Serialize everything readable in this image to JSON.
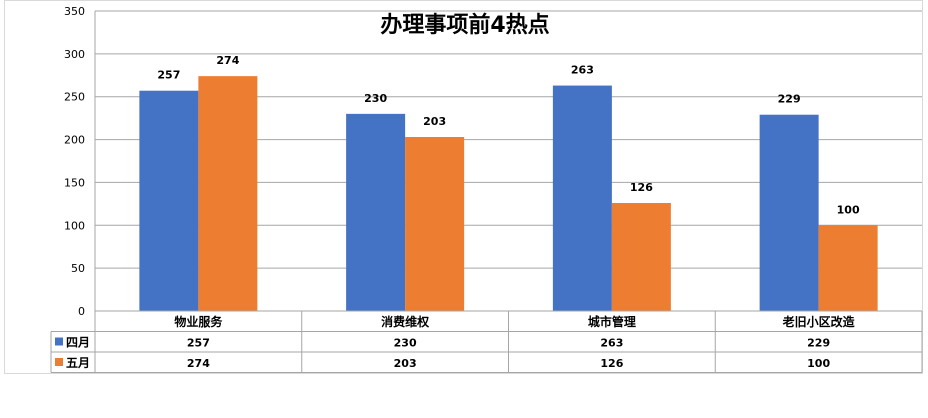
{
  "chart_data": {
    "type": "bar",
    "title": "办理事项前4热点",
    "categories": [
      "物业服务",
      "消费维权",
      "城市管理",
      "老旧小区改造"
    ],
    "series": [
      {
        "name": "四月",
        "values": [
          257,
          230,
          263,
          229
        ],
        "color": "#4472C4"
      },
      {
        "name": "五月",
        "values": [
          274,
          203,
          126,
          100
        ],
        "color": "#ED7D31"
      }
    ],
    "ylim": [
      0,
      350
    ],
    "yticks": [
      0,
      50,
      100,
      150,
      200,
      250,
      300,
      350
    ],
    "grid": true,
    "legend_placement": "data-table",
    "data_table": true
  }
}
